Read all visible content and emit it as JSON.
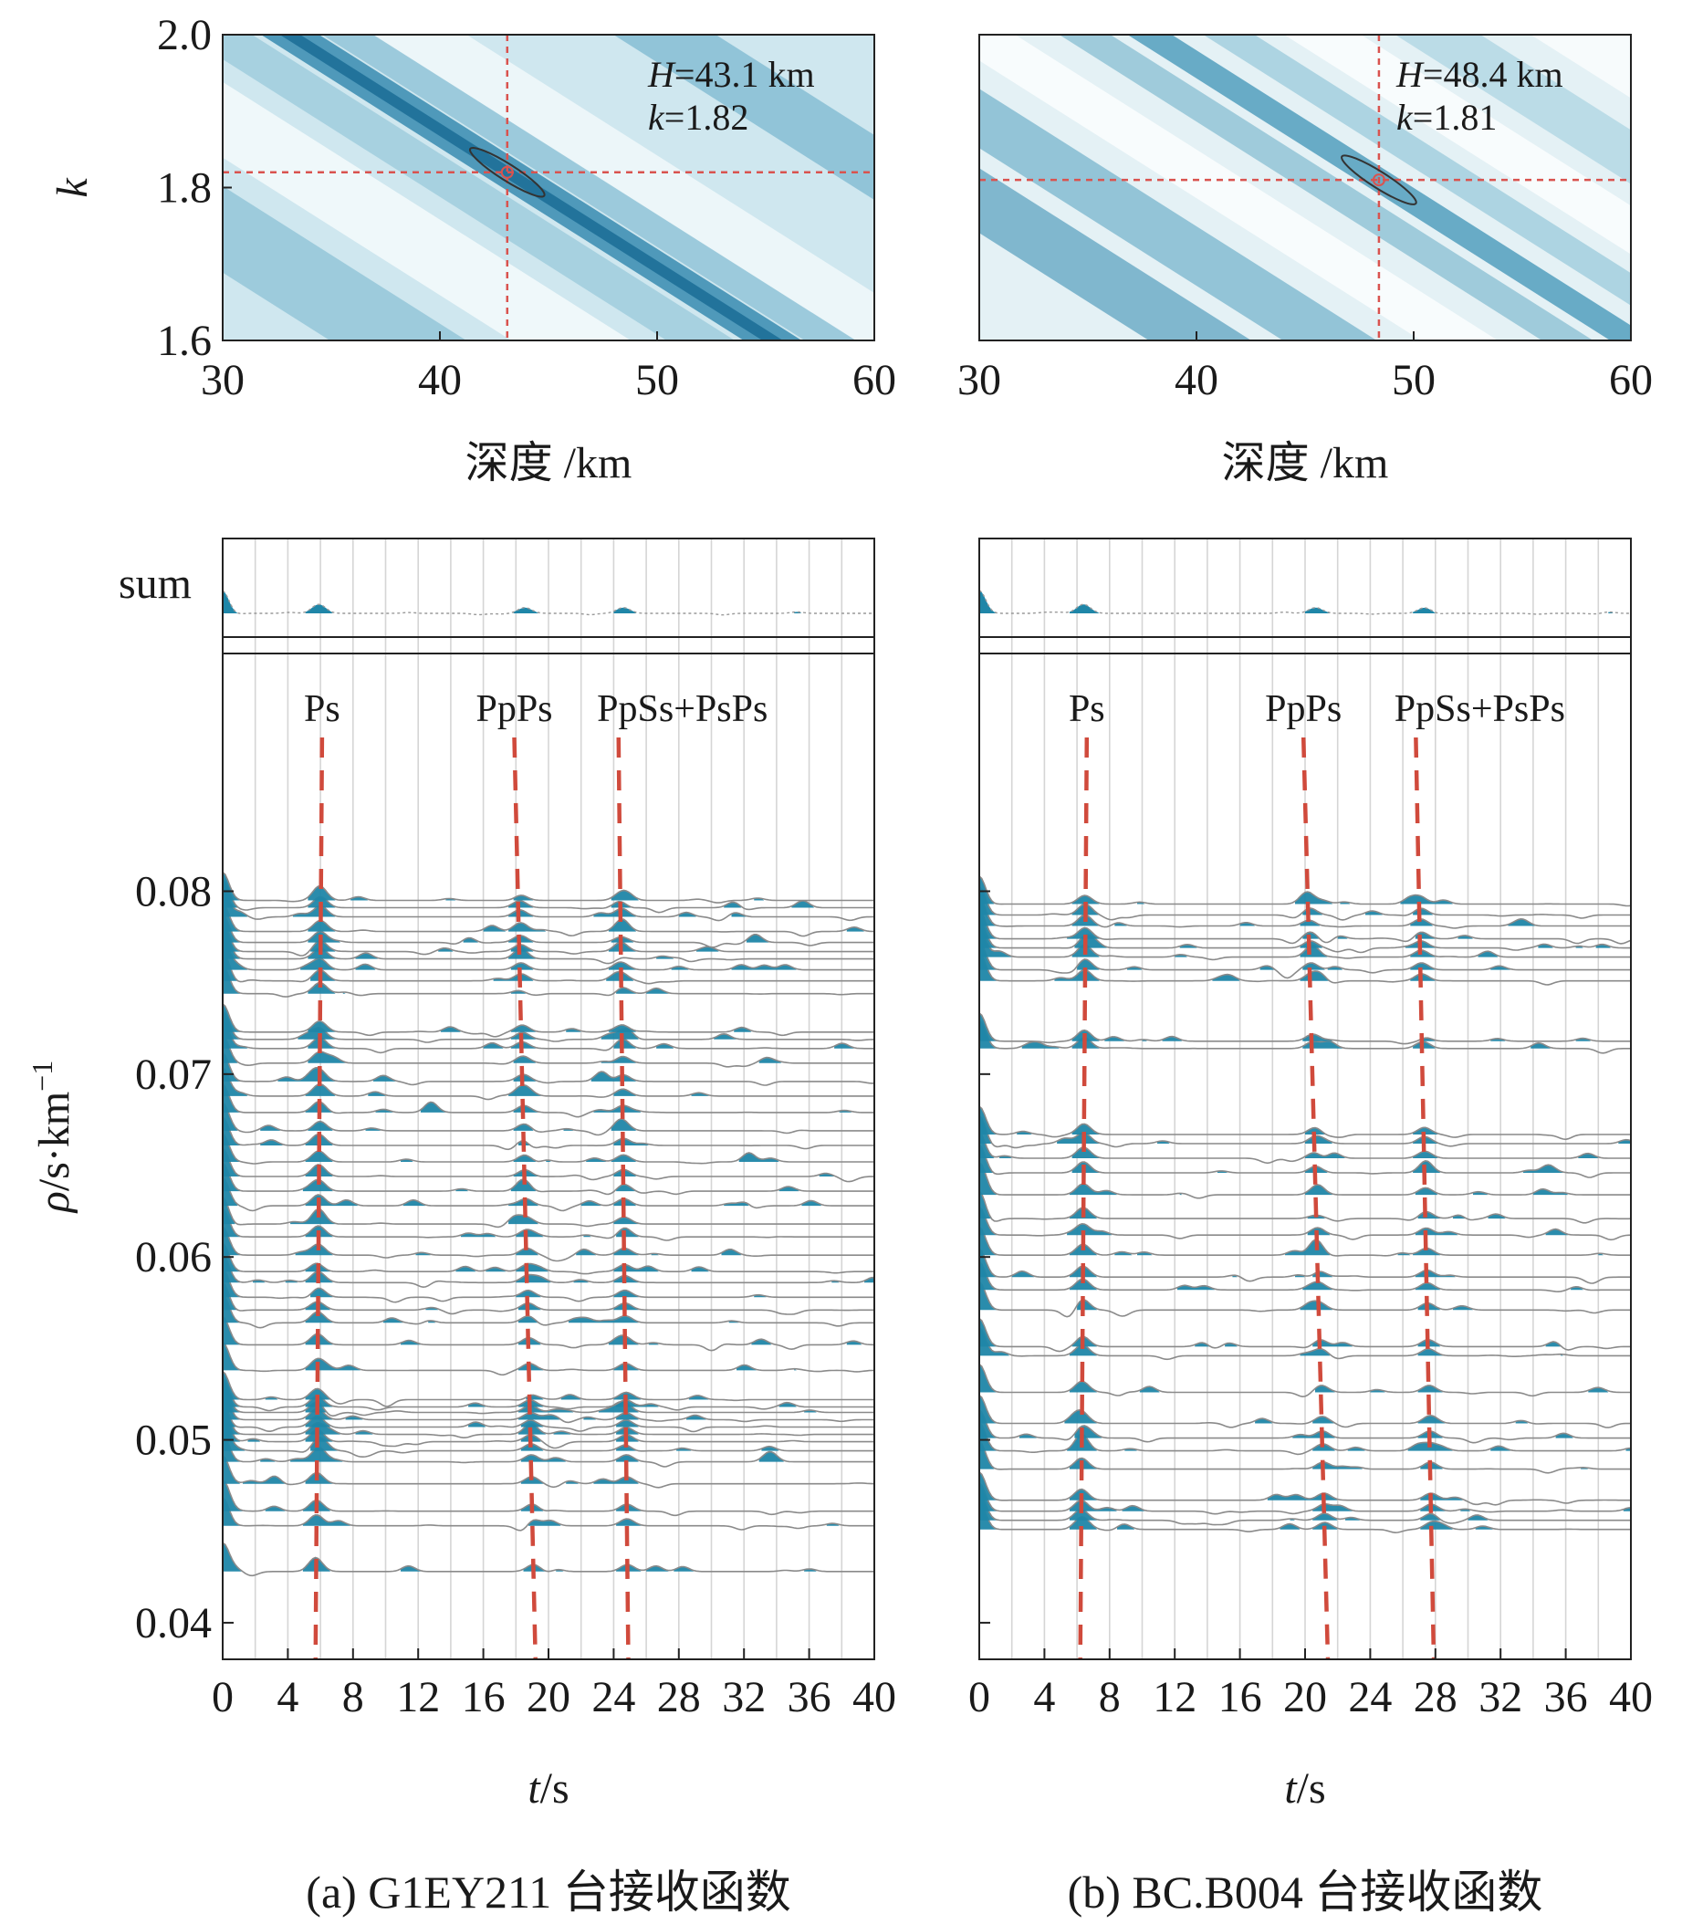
{
  "chart_data": [
    {
      "type": "heatmap",
      "panel": "a",
      "xlabel": "深度 /km",
      "ylabel": "k",
      "xlim": [
        30,
        60
      ],
      "ylim": [
        1.6,
        2.0
      ],
      "xticks": [
        "30",
        "40",
        "50",
        "60"
      ],
      "yticks": [
        "1.6",
        "1.8",
        "2.0"
      ],
      "best_H": 43.1,
      "best_k": 1.82,
      "annot_H": "H=43.1 km",
      "annot_k": "k=1.82"
    },
    {
      "type": "heatmap",
      "panel": "b",
      "xlabel": "深度 /km",
      "ylabel": "",
      "xlim": [
        30,
        60
      ],
      "ylim": [
        1.6,
        2.0
      ],
      "xticks": [
        "30",
        "40",
        "50",
        "60"
      ],
      "yticks": [],
      "best_H": 48.4,
      "best_k": 1.81,
      "annot_H": "H=48.4 km",
      "annot_k": "k=1.81"
    },
    {
      "type": "line",
      "panel": "a",
      "title": "(a) G1EY211 台接收函数",
      "xlabel": "t/s",
      "ylabel": "ρ/s·km⁻¹",
      "xlim": [
        0,
        40
      ],
      "ylim": [
        0.038,
        0.093
      ],
      "xticks": [
        "0",
        "4",
        "8",
        "12",
        "16",
        "20",
        "24",
        "28",
        "32",
        "36",
        "40"
      ],
      "yticks": [
        "0.04",
        "0.05",
        "0.06",
        "0.07",
        "0.08"
      ],
      "sum_label": "sum",
      "phases": [
        {
          "name": "Ps",
          "t_top": 6.1,
          "t_bottom": 5.7
        },
        {
          "name": "PpPs",
          "t_top": 17.9,
          "t_bottom": 19.2
        },
        {
          "name": "PpSs+PsPs",
          "t_top": 24.3,
          "t_bottom": 24.9
        }
      ],
      "trace_ray_parameters": [
        0.0428,
        0.0453,
        0.0461,
        0.0476,
        0.0488,
        0.0494,
        0.0499,
        0.0503,
        0.0507,
        0.0511,
        0.0515,
        0.0518,
        0.0522,
        0.0538,
        0.0552,
        0.0564,
        0.0571,
        0.0578,
        0.0586,
        0.0592,
        0.0601,
        0.0611,
        0.0618,
        0.0628,
        0.0636,
        0.0644,
        0.0652,
        0.0661,
        0.0669,
        0.0679,
        0.0688,
        0.0696,
        0.0706,
        0.0714,
        0.0719,
        0.0723,
        0.0744,
        0.0751,
        0.0757,
        0.0763,
        0.0767,
        0.0772,
        0.0778,
        0.0786,
        0.0791,
        0.0795
      ]
    },
    {
      "type": "line",
      "panel": "b",
      "title": "(b) BC.B004 台接收函数",
      "xlabel": "t/s",
      "ylabel": "",
      "xlim": [
        0,
        40
      ],
      "ylim": [
        0.038,
        0.093
      ],
      "xticks": [
        "0",
        "4",
        "8",
        "12",
        "16",
        "20",
        "24",
        "28",
        "32",
        "36",
        "40"
      ],
      "yticks": [],
      "sum_label": "",
      "phases": [
        {
          "name": "Ps",
          "t_top": 6.6,
          "t_bottom": 6.2
        },
        {
          "name": "PpPs",
          "t_top": 19.9,
          "t_bottom": 21.4
        },
        {
          "name": "PpSs+PsPs",
          "t_top": 26.8,
          "t_bottom": 27.9
        }
      ],
      "trace_ray_parameters": [
        0.0451,
        0.0456,
        0.0461,
        0.0467,
        0.0484,
        0.0494,
        0.0501,
        0.0509,
        0.0526,
        0.0546,
        0.0551,
        0.0571,
        0.0582,
        0.0589,
        0.0601,
        0.0612,
        0.0621,
        0.0634,
        0.0646,
        0.0654,
        0.0662,
        0.0667,
        0.0714,
        0.0718,
        0.0751,
        0.0757,
        0.0764,
        0.0769,
        0.0774,
        0.0781,
        0.0787,
        0.0793
      ]
    }
  ]
}
